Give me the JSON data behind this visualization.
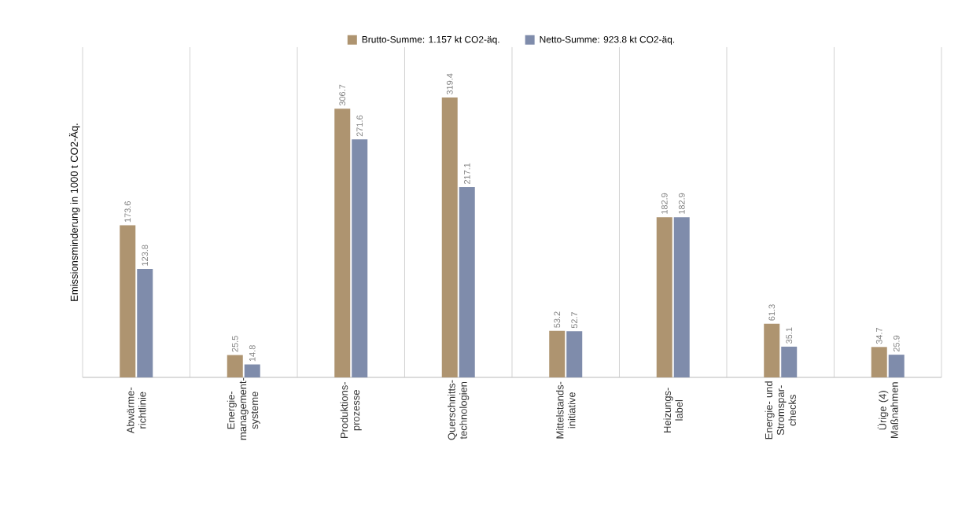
{
  "chart_data": {
    "type": "bar",
    "ylabel": "Emissionsminderung in 1000 t CO2-Äq.",
    "categories": [
      "Abwärme- richtlinie",
      "Energie- management- systeme",
      "Produktions- prozesse",
      "Querschnitts- technologien",
      "Mittelstands- initiative",
      "Heizungs- label",
      "Energie- und Stromspar- checks",
      "Ürige (4) Maßnahmen"
    ],
    "series": [
      {
        "name": "Brutto-Summe: 1.157 kt CO2-äq.",
        "color": "#ae9470",
        "values": [
          173.6,
          25.5,
          306.7,
          319.4,
          53.2,
          182.9,
          61.3,
          34.7
        ]
      },
      {
        "name": "Netto-Summe: 923.8 kt CO2-äq.",
        "color": "#7f8cab",
        "values": [
          123.8,
          14.8,
          271.6,
          217.1,
          52.7,
          182.9,
          35.1,
          25.9
        ]
      }
    ],
    "data_labels": true,
    "grid": "x",
    "legend": "top"
  }
}
